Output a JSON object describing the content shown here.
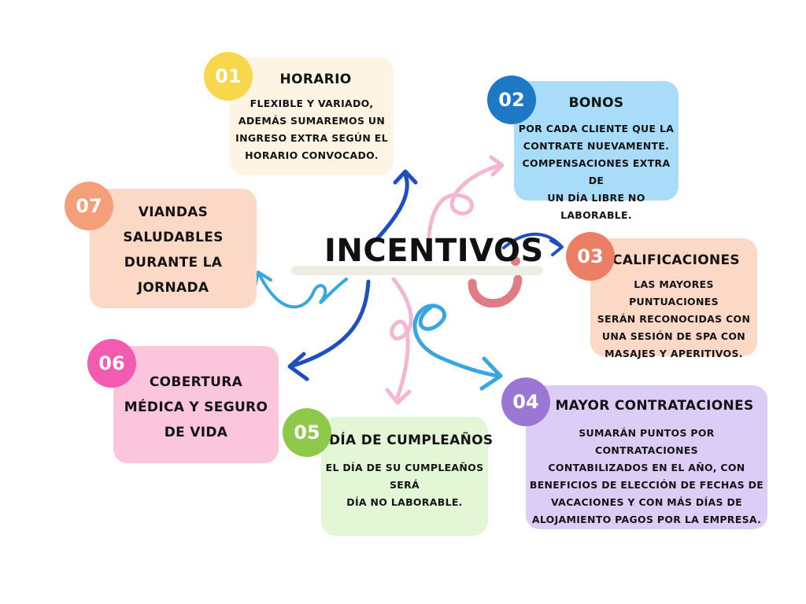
{
  "central_title": "INCENTIVOS",
  "colors": {
    "dark_blue": "#1e4fbf",
    "light_blue": "#3aa6df",
    "pink": "#f5b6cf",
    "accent_red": "#e07c86"
  },
  "items": [
    {
      "num": "01",
      "title": "HORARIO",
      "body": [
        "FLEXIBLE Y VARIADO,",
        "ADEMÁS SUMAREMOS UN",
        "INGRESO EXTRA SEGÚN EL",
        "HORARIO CONVOCADO."
      ],
      "card_color": "#fdf4e4",
      "badge_color": "#f7d74c"
    },
    {
      "num": "02",
      "title": "BONOS",
      "body": [
        "POR CADA CLIENTE QUE LA",
        "CONTRATE NUEVAMENTE.",
        "COMPENSACIONES EXTRA DE",
        "UN DÍA LIBRE NO LABORABLE."
      ],
      "card_color": "#a9dcf8",
      "badge_color": "#1d79c6"
    },
    {
      "num": "03",
      "title": "CALIFICACIONES",
      "body": [
        "LAS MAYORES PUNTUACIONES",
        "SERÁN RECONOCIDAS CON",
        "UNA SESIÓN DE SPA CON",
        "MASAJES Y APERITIVOS."
      ],
      "card_color": "#fcd9c7",
      "badge_color": "#ec7e66"
    },
    {
      "num": "04",
      "title": "MAYOR CONTRATACIONES",
      "body": [
        "SUMARÁN PUNTOS POR CONTRATACIONES",
        "CONTABILIZADOS EN EL AÑO, CON",
        "BENEFICIOS DE ELECCIÓN DE FECHAS DE",
        "VACACIONES Y CON MÁS DÍAS DE",
        "ALOJAMIENTO PAGOS POR LA EMPRESA."
      ],
      "card_color": "#dccdf7",
      "badge_color": "#9b77d4"
    },
    {
      "num": "05",
      "title": "DÍA DE CUMPLEAÑOS",
      "body": [
        "EL DÍA DE SU CUMPLEAÑOS",
        "SERÁ",
        "DÍA NO LABORABLE."
      ],
      "card_color": "#e3f6d6",
      "badge_color": "#8ec94b"
    },
    {
      "num": "06",
      "title": "COBERTURA MÉDICA Y SEGURO DE VIDA",
      "title_lines": [
        "COBERTURA",
        "MÉDICA Y SEGURO",
        "DE VIDA"
      ],
      "body": [],
      "card_color": "#fbc6dc",
      "badge_color": "#f25bb1"
    },
    {
      "num": "07",
      "title": "VIANDAS SALUDABLES DURANTE LA JORNADA",
      "title_lines": [
        "VIANDAS",
        "SALUDABLES",
        "DURANTE LA",
        "JORNADA"
      ],
      "body": [],
      "card_color": "#fcd9c7",
      "badge_color": "#f3a07a"
    }
  ]
}
